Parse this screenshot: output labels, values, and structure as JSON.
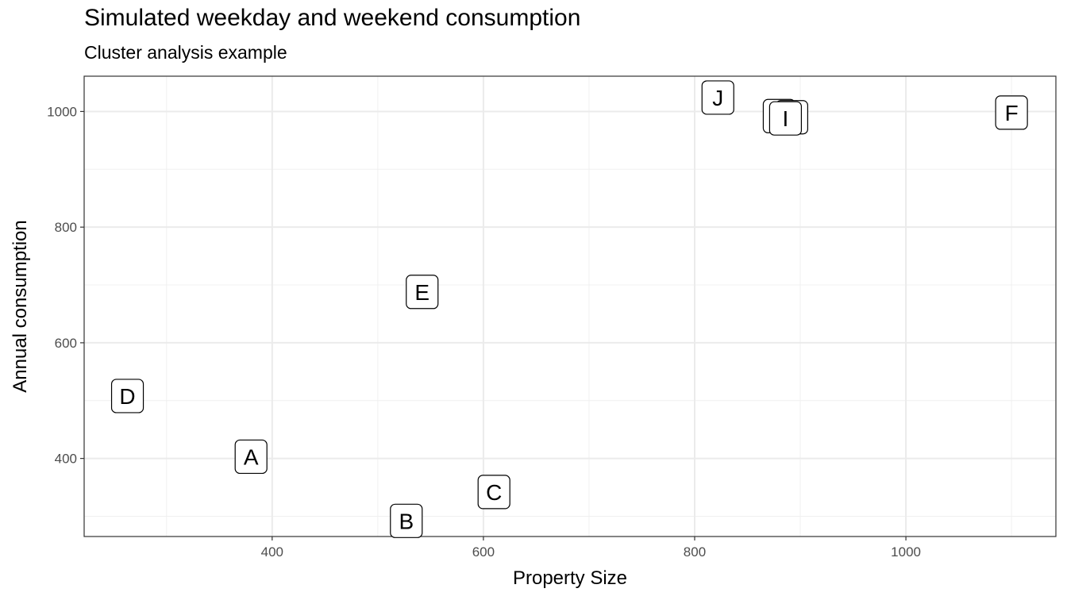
{
  "chart_data": {
    "type": "scatter",
    "title": "Simulated weekday and weekend consumption",
    "subtitle": "Cluster analysis example",
    "xlabel": "Property Size",
    "ylabel": "Annual consumption",
    "xlim": [
      222,
      1142
    ],
    "ylim": [
      265,
      1061
    ],
    "x_ticks": [
      400,
      600,
      800,
      1000
    ],
    "y_ticks": [
      400,
      600,
      800,
      1000
    ],
    "grid": true,
    "points": [
      {
        "label": "A",
        "x": 380,
        "y": 403
      },
      {
        "label": "B",
        "x": 527,
        "y": 292
      },
      {
        "label": "C",
        "x": 610,
        "y": 342
      },
      {
        "label": "D",
        "x": 263,
        "y": 508
      },
      {
        "label": "E",
        "x": 542,
        "y": 688
      },
      {
        "label": "F",
        "x": 1100,
        "y": 998
      },
      {
        "label": "G",
        "x": 880,
        "y": 992
      },
      {
        "label": "H",
        "x": 892,
        "y": 990
      },
      {
        "label": "I",
        "x": 886,
        "y": 988
      },
      {
        "label": "J",
        "x": 822,
        "y": 1024
      }
    ]
  }
}
